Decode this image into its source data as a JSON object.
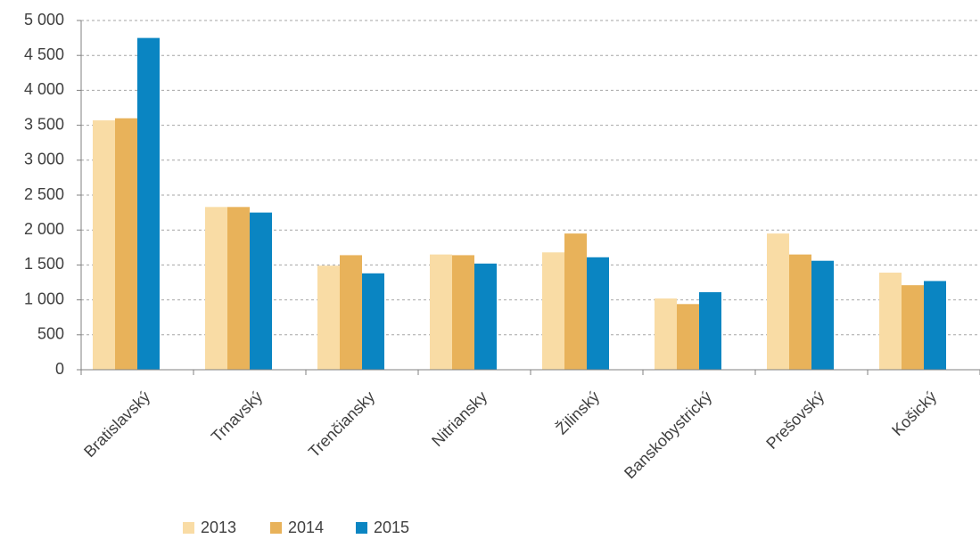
{
  "chart_data": {
    "type": "bar",
    "categories": [
      "Bratislavský",
      "Trnavský",
      "Trenčiansky",
      "Nitriansky",
      "Žilinský",
      "Banskobystrický",
      "Prešovský",
      "Košický"
    ],
    "series": [
      {
        "name": "2013",
        "color": "#f9dca5",
        "values": [
          3570,
          2330,
          1490,
          1650,
          1680,
          1020,
          1950,
          1390
        ]
      },
      {
        "name": "2014",
        "color": "#e8b25a",
        "values": [
          3600,
          2330,
          1640,
          1640,
          1950,
          940,
          1650,
          1210
        ]
      },
      {
        "name": "2015",
        "color": "#0a85c2",
        "values": [
          4750,
          2250,
          1380,
          1520,
          1610,
          1110,
          1560,
          1270
        ]
      }
    ],
    "ylim": [
      0,
      5000
    ],
    "yticks": [
      0,
      500,
      {
        "value": 1000,
        "label": "1 000"
      },
      {
        "value": 1500,
        "label": "1 500"
      },
      {
        "value": 2000,
        "label": "2 000"
      },
      {
        "value": 2500,
        "label": "2 500"
      },
      {
        "value": 3000,
        "label": "3 000"
      },
      {
        "value": 3500,
        "label": "3 500"
      },
      {
        "value": 4000,
        "label": "4 000"
      },
      {
        "value": 4500,
        "label": "4 500"
      },
      {
        "value": 5000,
        "label": "5 000"
      }
    ],
    "grid": true,
    "legend": "bottom"
  }
}
